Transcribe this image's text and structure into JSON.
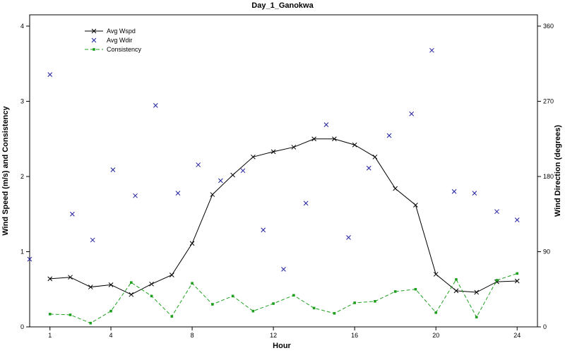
{
  "chart_data": {
    "type": "line",
    "title": "Day_1_Ganokwa",
    "xlabel": "Hour",
    "ylabel": "Wind Speed (m/s) and Consistency",
    "ylabel_right": "Wind Direction (degrees)",
    "xlim": [
      0,
      25
    ],
    "ylim": [
      0,
      4.15
    ],
    "ylim_right": [
      0,
      373.5
    ],
    "x_ticks": [
      1,
      4,
      8,
      12,
      16,
      20,
      24
    ],
    "x_tick_labels": [
      "1",
      "4",
      "8",
      "12",
      "16",
      "20",
      "24"
    ],
    "y_ticks": [
      0,
      1,
      2,
      3,
      4
    ],
    "y_tick_labels": [
      "0",
      "1",
      "2",
      "3",
      "4"
    ],
    "y_ticks_right": [
      0,
      90,
      180,
      270,
      360
    ],
    "y_tick_labels_right": [
      "0",
      "90",
      "180",
      "270",
      "360"
    ],
    "legend_position": "top-left",
    "series": [
      {
        "name": "Avg Wspd",
        "axis": "left",
        "style": "line-x",
        "color": "#000000",
        "x": [
          1,
          2,
          3,
          4,
          5,
          6,
          7,
          8,
          9,
          10,
          11,
          12,
          13,
          14,
          15,
          16,
          17,
          18,
          19,
          20,
          21,
          22,
          23,
          24
        ],
        "y": [
          0.64,
          0.66,
          0.53,
          0.56,
          0.43,
          0.57,
          0.69,
          1.11,
          1.76,
          2.02,
          2.26,
          2.33,
          2.39,
          2.5,
          2.5,
          2.42,
          2.26,
          1.84,
          1.62,
          0.7,
          0.48,
          0.46,
          0.6,
          0.61
        ]
      },
      {
        "name": "Avg Wdir",
        "axis": "right",
        "style": "x-markers",
        "color": "#1f1fa0",
        "x": [
          0,
          1,
          2.1,
          3.1,
          4.1,
          5.2,
          6.2,
          7.3,
          8.3,
          9.4,
          10.5,
          11.5,
          12.5,
          13.6,
          14.6,
          15.7,
          16.7,
          17.7,
          18.8,
          19.8,
          20.9,
          21.9,
          23,
          24
        ],
        "y": [
          81,
          302,
          135,
          104,
          188,
          157,
          265,
          160,
          194,
          175,
          187,
          116,
          69,
          148,
          242,
          107,
          190,
          229,
          255,
          331,
          162,
          160,
          138,
          128
        ]
      },
      {
        "name": "Consistency",
        "axis": "left",
        "style": "dashed-dot",
        "color": "#1ea01e",
        "x": [
          1,
          2,
          3,
          4,
          5,
          6,
          7,
          8,
          9,
          10,
          11,
          12,
          13,
          14,
          15,
          16,
          17,
          18,
          19,
          20,
          21,
          22,
          23,
          24
        ],
        "y": [
          0.17,
          0.16,
          0.05,
          0.21,
          0.59,
          0.41,
          0.14,
          0.58,
          0.3,
          0.41,
          0.21,
          0.31,
          0.42,
          0.25,
          0.18,
          0.32,
          0.34,
          0.47,
          0.5,
          0.19,
          0.63,
          0.13,
          0.62,
          0.71
        ]
      }
    ]
  }
}
